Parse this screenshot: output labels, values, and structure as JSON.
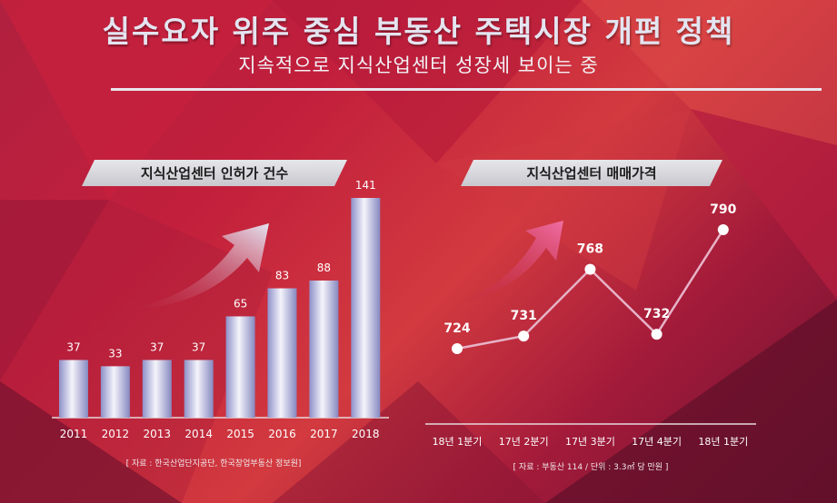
{
  "title": "실수요자 위주 중심 부동산 주택시장 개편 정책",
  "subtitle": "지속적으로 지식산업센터 성장세 보이는 중",
  "colors": {
    "background": "#c21f3c",
    "bar": "#c9cbe6",
    "line": "#e7b3c8",
    "text": "#ffffff"
  },
  "chart_data": [
    {
      "type": "bar",
      "title": "지식산업센터 인허가 건수",
      "categories": [
        "2011",
        "2012",
        "2013",
        "2014",
        "2015",
        "2016",
        "2017",
        "2018"
      ],
      "values": [
        37,
        33,
        37,
        37,
        65,
        83,
        88,
        141
      ],
      "ylim": [
        0,
        141
      ],
      "source": "[ 자료 : 한국산업단지공단, 한국창업부동산 정보원]"
    },
    {
      "type": "line",
      "title": "지식산업센터 매매가격",
      "categories": [
        "18년 1분기",
        "17년 2분기",
        "17년 3분기",
        "17년 4분기",
        "18년 1분기"
      ],
      "values": [
        724,
        731,
        768,
        732,
        790
      ],
      "ylim": [
        700,
        800
      ],
      "source": "[ 자료 : 부동산 114 / 단위 : 3.3㎡ 당 만원 ]"
    }
  ]
}
